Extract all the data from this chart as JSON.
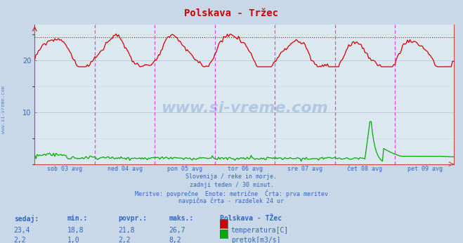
{
  "title": "Polskava - Tržec",
  "bg_color": "#c8d8e8",
  "plot_bg_color": "#dce8f0",
  "grid_color": "#b8c8d8",
  "grid_minor_color": "#c8d8e4",
  "x_labels": [
    "sob 03 avg",
    "ned 04 avg",
    "pon 05 avg",
    "tor 06 avg",
    "sre 07 avg",
    "čet 08 avg",
    "pet 09 avg"
  ],
  "n_points": 336,
  "temp_color": "#cc0000",
  "flow_color": "#00aa00",
  "hline_color": "#cc0000",
  "vline_color": "#dd44dd",
  "axis_color": "#cc4444",
  "text_color": "#3366bb",
  "ylim": [
    0,
    27
  ],
  "yticks": [
    10,
    20
  ],
  "hline_value": 24.5,
  "subtitle_lines": [
    "Slovenija / reke in morje.",
    "zadnji teden / 30 minut.",
    "Meritve: povprečne  Enote: metrične  Črta: prva meritev",
    "navpična črta - razdelek 24 ur"
  ],
  "stats_headers": [
    "sedaj:",
    "min.:",
    "povpr.:",
    "maks.:"
  ],
  "stats_temp": [
    "23,4",
    "18,8",
    "21,8",
    "26,7"
  ],
  "stats_flow": [
    "2,2",
    "1,0",
    "2,2",
    "8,2"
  ],
  "legend_title": "Polskava - TŽec",
  "legend_temp": "temperatura[C]",
  "legend_flow": "pretok[m3/s]",
  "watermark": "www.si-vreme.com",
  "left_watermark": "www.si-vreme.com"
}
